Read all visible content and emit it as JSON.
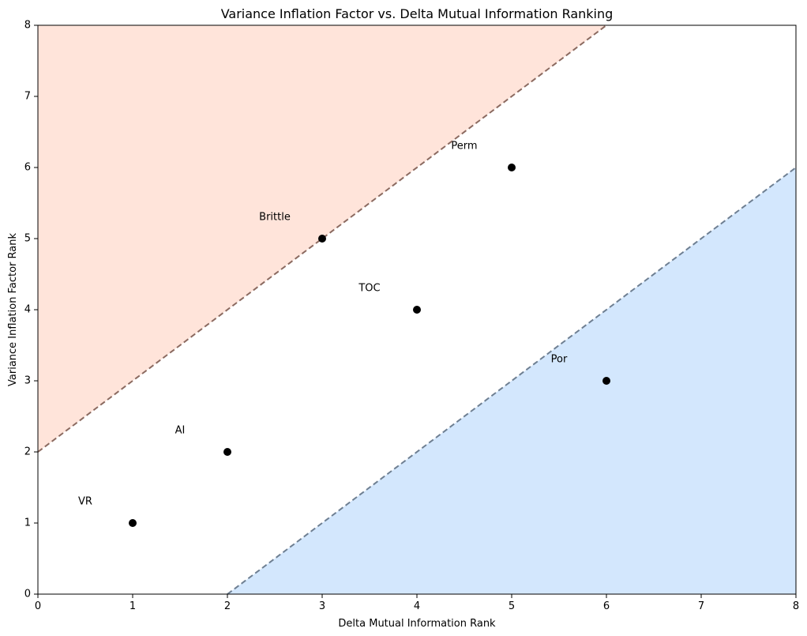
{
  "chart_data": {
    "type": "scatter",
    "title": "Variance Inflation Factor vs. Delta Mutual Information Ranking",
    "xlabel": "Delta Mutual Information Rank",
    "ylabel": "Variance Inflation Factor Rank",
    "xlim": [
      0,
      8
    ],
    "ylim": [
      0,
      8
    ],
    "xticks": [
      0,
      1,
      2,
      3,
      4,
      5,
      6,
      7,
      8
    ],
    "yticks": [
      0,
      1,
      2,
      3,
      4,
      5,
      6,
      7,
      8
    ],
    "grid": false,
    "points": [
      {
        "label": "VR",
        "x": 1,
        "y": 1
      },
      {
        "label": "AI",
        "x": 2,
        "y": 2
      },
      {
        "label": "Brittle",
        "x": 3,
        "y": 5
      },
      {
        "label": "TOC",
        "x": 4,
        "y": 4
      },
      {
        "label": "Perm",
        "x": 5,
        "y": 6
      },
      {
        "label": "Por",
        "x": 6,
        "y": 3
      }
    ],
    "reference_lines": [
      {
        "x": [
          0,
          6
        ],
        "y": [
          2,
          8
        ],
        "color": "#8b6a60",
        "style": "dashed"
      },
      {
        "x": [
          2,
          8
        ],
        "y": [
          0,
          6
        ],
        "color": "#6e7f92",
        "style": "dashed"
      }
    ],
    "shaded_regions": [
      {
        "polygon": [
          [
            0,
            2
          ],
          [
            6,
            8
          ],
          [
            0,
            8
          ]
        ],
        "color": "#ffe4da"
      },
      {
        "polygon": [
          [
            2,
            0
          ],
          [
            8,
            6
          ],
          [
            8,
            0
          ]
        ],
        "color": "#d3e7fd"
      }
    ],
    "point_color": "#000000"
  }
}
